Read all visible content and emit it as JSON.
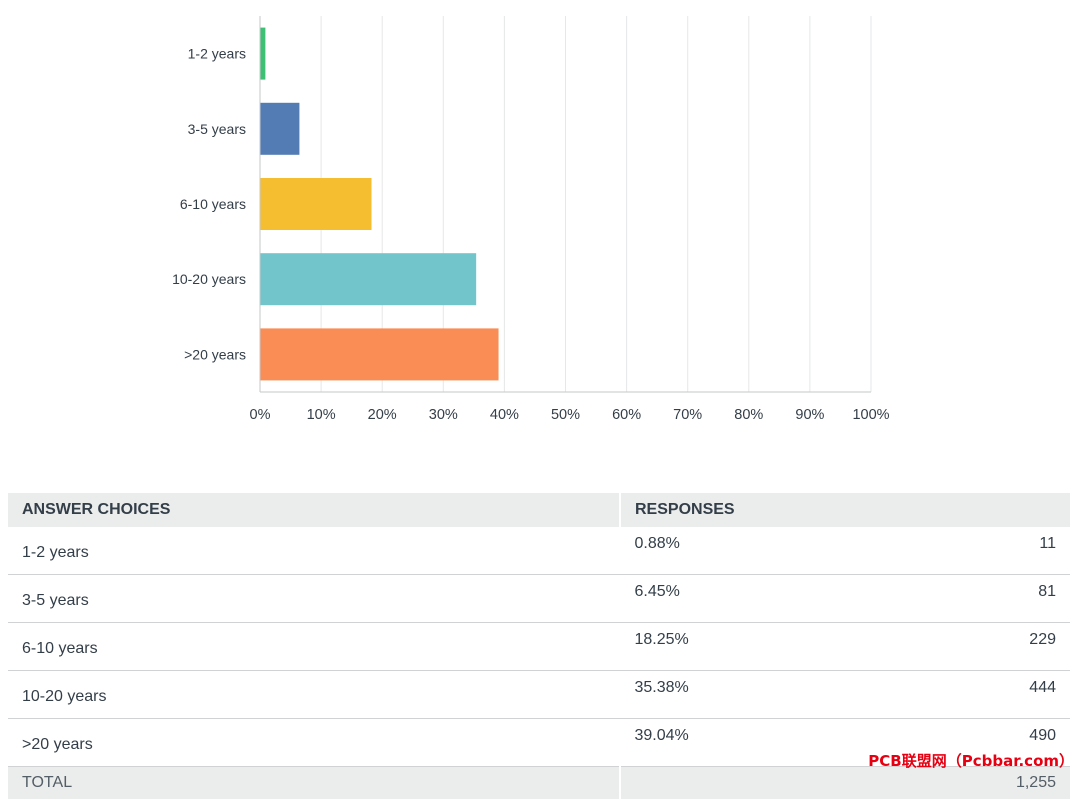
{
  "chart_data": {
    "type": "bar",
    "orientation": "horizontal",
    "categories": [
      "1-2 years",
      "3-5 years",
      "6-10 years",
      "10-20 years",
      ">20 years"
    ],
    "values": [
      0.88,
      6.45,
      18.25,
      35.38,
      39.04
    ],
    "colors": [
      "#3dbf74",
      "#537bb4",
      "#f5be30",
      "#72c6cb",
      "#f98d55"
    ],
    "xlim": [
      0,
      100
    ],
    "xticks": [
      "0%",
      "10%",
      "20%",
      "30%",
      "40%",
      "50%",
      "60%",
      "70%",
      "80%",
      "90%",
      "100%"
    ],
    "grid": true
  },
  "table": {
    "headers": [
      "ANSWER CHOICES",
      "RESPONSES",
      ""
    ],
    "rows": [
      [
        "1-2 years",
        "0.88%",
        "11"
      ],
      [
        "3-5 years",
        "6.45%",
        "81"
      ],
      [
        "6-10 years",
        "18.25%",
        "229"
      ],
      [
        "10-20 years",
        "35.38%",
        "444"
      ],
      [
        ">20 years",
        "39.04%",
        "490"
      ]
    ],
    "total_label": "TOTAL",
    "total_value": "1,255"
  },
  "watermark": "PCB联盟网（Pcbbar.com）"
}
